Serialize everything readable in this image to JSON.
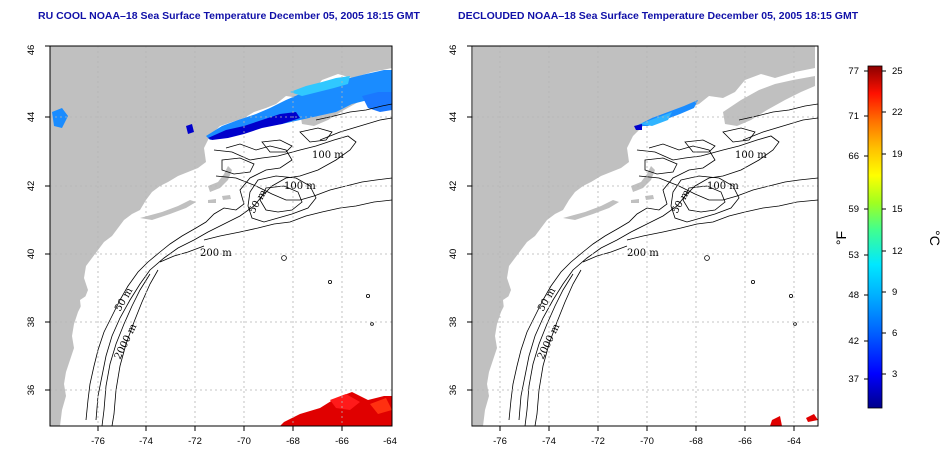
{
  "maps": [
    {
      "title": "RU COOL NOAA–18 Sea Surface Temperature December 05, 2005 18:15 GMT",
      "contour_labels": [
        "100 m",
        "100 m",
        "50 m",
        "200 m",
        "50 m",
        "2000 m"
      ]
    },
    {
      "title": "DECLOUDED NOAA–18 Sea Surface Temperature December 05, 2005 18:15 GMT",
      "contour_labels": [
        "100 m",
        "100 m",
        "50 m",
        "200 m",
        "50 m",
        "2000 m"
      ]
    }
  ],
  "axes": {
    "x_ticks": [
      "-76",
      "-74",
      "-72",
      "-70",
      "-68",
      "-66",
      "-64"
    ],
    "y_ticks": [
      "46",
      "44",
      "42",
      "40",
      "38",
      "36"
    ],
    "lon_range": [
      -77,
      -63
    ],
    "lat_range": [
      35,
      46
    ]
  },
  "colorbar": {
    "fahrenheit_label": "°F",
    "celsius_label": "°C",
    "fahrenheit_ticks": [
      "77",
      "71",
      "66",
      "59",
      "53",
      "48",
      "42",
      "37"
    ],
    "celsius_ticks": [
      "25",
      "22",
      "19",
      "15",
      "12",
      "9",
      "6",
      "3"
    ],
    "colors": [
      "#00008b",
      "#0000ff",
      "#0060ff",
      "#00a0ff",
      "#00e0ff",
      "#40ff90",
      "#a0ff20",
      "#ffff00",
      "#ffc000",
      "#ff8000",
      "#ff2000",
      "#c00000",
      "#8b0000"
    ]
  },
  "colors": {
    "land": "#c0c0c0",
    "sea": "#ffffff",
    "title": "#1010a8",
    "grid": "#b4b4b4"
  }
}
